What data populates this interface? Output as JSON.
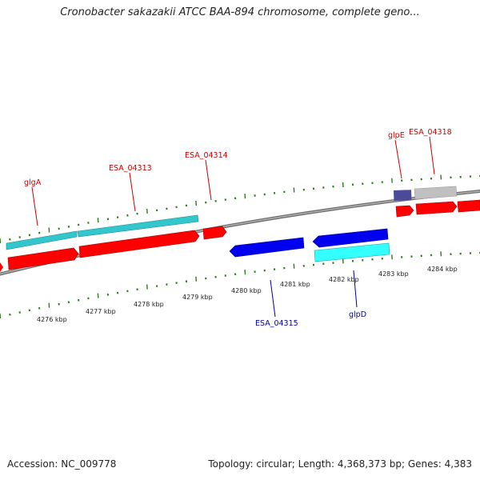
{
  "title": "Cronobacter sakazakii ATCC BAA-894 chromosome, complete geno...",
  "footer": {
    "accession": "Accession: NC_009778",
    "summary": "Topology: circular; Length: 4,368,373 bp; Genes: 4,383"
  },
  "colors": {
    "backbone": "#8c8c8c",
    "tick": "#2e7d1a",
    "forward_gene": "#ff0000",
    "forward_cds": "#33c6cc",
    "reverse_gene": "#0000ee",
    "reverse_cds": "#33ffff",
    "label_forward": "#cc0000",
    "label_reverse": "#000099",
    "misc": "#4a4a99",
    "pseudo": "#c0c0c0"
  },
  "scale_labels": [
    "4276 kbp",
    "4277 kbp",
    "4278 kbp",
    "4279 kbp",
    "4280 kbp",
    "4281 kbp",
    "4282 kbp",
    "4283 kbp",
    "4284 kbp"
  ],
  "gene_labels": {
    "forward": [
      "glgA",
      "ESA_04313",
      "ESA_04314",
      "glpE",
      "ESA_04318"
    ],
    "reverse": [
      "ESA_04315",
      "glpD"
    ]
  }
}
